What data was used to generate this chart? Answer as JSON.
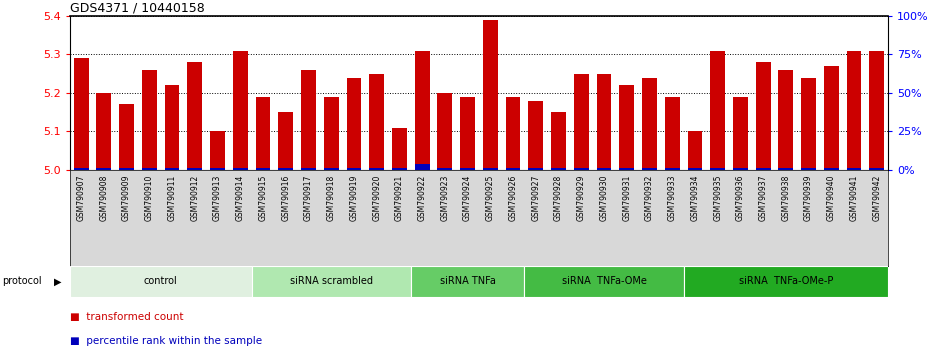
{
  "title": "GDS4371 / 10440158",
  "samples": [
    "GSM790907",
    "GSM790908",
    "GSM790909",
    "GSM790910",
    "GSM790911",
    "GSM790912",
    "GSM790913",
    "GSM790914",
    "GSM790915",
    "GSM790916",
    "GSM790917",
    "GSM790918",
    "GSM790919",
    "GSM790920",
    "GSM790921",
    "GSM790922",
    "GSM790923",
    "GSM790924",
    "GSM790925",
    "GSM790926",
    "GSM790927",
    "GSM790928",
    "GSM790929",
    "GSM790930",
    "GSM790931",
    "GSM790932",
    "GSM790933",
    "GSM790934",
    "GSM790935",
    "GSM790936",
    "GSM790937",
    "GSM790938",
    "GSM790939",
    "GSM790940",
    "GSM790941",
    "GSM790942"
  ],
  "values": [
    5.29,
    5.2,
    5.17,
    5.26,
    5.22,
    5.28,
    5.1,
    5.31,
    5.19,
    5.15,
    5.26,
    5.19,
    5.24,
    5.25,
    5.11,
    5.31,
    5.2,
    5.19,
    5.39,
    5.19,
    5.18,
    5.15,
    5.25,
    5.25,
    5.22,
    5.24,
    5.19,
    5.1,
    5.31,
    5.19,
    5.28,
    5.26,
    5.24,
    5.27,
    5.31,
    5.31
  ],
  "percentile_values": [
    1,
    1,
    1,
    1,
    1,
    1,
    1,
    1,
    1,
    1,
    1,
    1,
    1,
    1,
    1,
    4,
    1,
    1,
    1,
    1,
    1,
    1,
    1,
    1,
    1,
    1,
    1,
    1,
    1,
    1,
    1,
    1,
    1,
    1,
    1,
    1
  ],
  "groups": [
    {
      "label": "control",
      "start": 0,
      "end": 7,
      "color": "#e0f0e0"
    },
    {
      "label": "siRNA scrambled",
      "start": 8,
      "end": 14,
      "color": "#b0e8b0"
    },
    {
      "label": "siRNA TNFa",
      "start": 15,
      "end": 19,
      "color": "#66cc66"
    },
    {
      "label": "siRNA  TNFa-OMe",
      "start": 20,
      "end": 26,
      "color": "#44bb44"
    },
    {
      "label": "siRNA  TNFa-OMe-P",
      "start": 27,
      "end": 35,
      "color": "#22aa22"
    }
  ],
  "ylim_left": [
    5.0,
    5.4
  ],
  "ylim_right": [
    0,
    100
  ],
  "yticks_left": [
    5.0,
    5.1,
    5.2,
    5.3,
    5.4
  ],
  "yticks_right": [
    0,
    25,
    50,
    75,
    100
  ],
  "bar_color": "#cc0000",
  "percentile_color": "#0000bb",
  "sample_bg_color": "#d8d8d8",
  "legend_items": [
    {
      "label": "transformed count",
      "color": "#cc0000"
    },
    {
      "label": "percentile rank within the sample",
      "color": "#0000bb"
    }
  ]
}
